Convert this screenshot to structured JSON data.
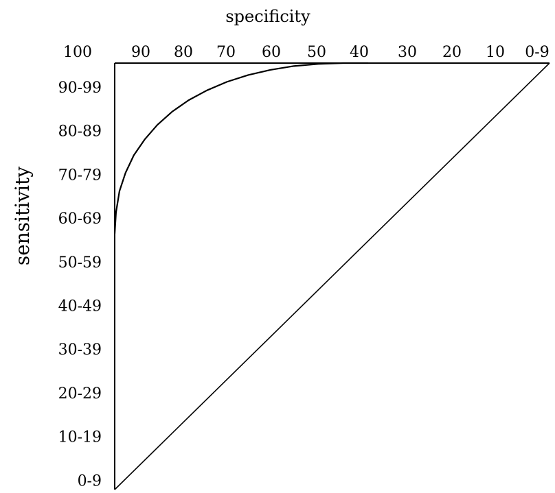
{
  "chart_data": {
    "type": "line",
    "title": "",
    "xlabel": "specificity",
    "ylabel": "sensitivity",
    "x_ticks": [
      "100",
      "90",
      "80",
      "70",
      "60",
      "50",
      "40",
      "30",
      "20",
      "10",
      "0-9"
    ],
    "y_ticks": [
      "90-99",
      "80-89",
      "70-79",
      "60-69",
      "50-59",
      "40-49",
      "30-39",
      "20-29",
      "10-19",
      "0-9"
    ],
    "xlim": [
      100,
      0
    ],
    "ylim": [
      0,
      100
    ],
    "grid": false,
    "legend": "none",
    "series": [
      {
        "x": [
          100,
          99.7,
          98.9,
          97.5,
          95.6,
          93.1,
          90.2,
          86.8,
          83,
          78.8,
          74.2,
          69.3,
          64.2,
          58.8,
          53.2,
          47.5,
          41.7
        ],
        "y": [
          60,
          65,
          70,
          74.3,
          78.4,
          82.1,
          85.5,
          88.6,
          91.3,
          93.6,
          95.6,
          97.2,
          98.4,
          99.3,
          99.8,
          100,
          100
        ]
      },
      {
        "x": [
          100,
          0
        ],
        "y": [
          0,
          100
        ]
      }
    ],
    "colors": {
      "line": "#000000",
      "frame": "#000000"
    }
  }
}
